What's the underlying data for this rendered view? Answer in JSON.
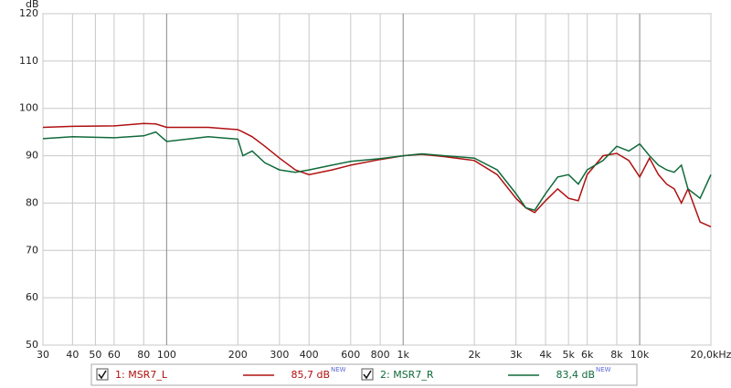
{
  "chart_data": {
    "type": "line",
    "y_label": "dB",
    "x": [
      30,
      40,
      60,
      80,
      90,
      100,
      150,
      200,
      210,
      230,
      260,
      300,
      350,
      400,
      500,
      600,
      800,
      1000,
      1200,
      1500,
      2000,
      2500,
      3000,
      3300,
      3600,
      4000,
      4500,
      5000,
      5500,
      6000,
      7000,
      8000,
      9000,
      10000,
      11000,
      12000,
      13000,
      14000,
      15000,
      16000,
      18000,
      20000
    ],
    "series": [
      {
        "name": "1: MSR7_L",
        "color": "#b01010",
        "level": {
          "value": 85.7,
          "label": "85,7 dB"
        },
        "badge": "NEW",
        "values": [
          96,
          96.2,
          96.3,
          96.8,
          96.7,
          96,
          96,
          95.5,
          95,
          94,
          92,
          89.5,
          87,
          86,
          87,
          88,
          89.2,
          90,
          90.3,
          89.8,
          89,
          86,
          81,
          79,
          78,
          80.5,
          83,
          81,
          80.5,
          86,
          90,
          90.5,
          89,
          85.5,
          89.5,
          86,
          84,
          83,
          80,
          83,
          76,
          75
        ]
      },
      {
        "name": "2: MSR7_R",
        "color": "#106a3a",
        "level": {
          "value": 83.4,
          "label": "83,4 dB"
        },
        "badge": "NEW",
        "values": [
          93.6,
          94,
          93.8,
          94.2,
          95,
          93,
          94,
          93.5,
          90,
          91,
          88.5,
          87,
          86.5,
          87,
          88,
          88.8,
          89.4,
          90,
          90.4,
          90,
          89.5,
          87,
          82,
          79,
          78.5,
          82,
          85.5,
          86,
          84,
          87,
          89,
          92,
          91,
          92.5,
          90,
          88,
          87,
          86.5,
          88,
          83,
          81,
          86
        ]
      }
    ],
    "xlim": [
      30,
      20000
    ],
    "log_x": true,
    "xticks": [
      30,
      40,
      50,
      60,
      80,
      100,
      200,
      300,
      400,
      600,
      800,
      {
        "value": 1000,
        "label": "1k"
      },
      {
        "value": 2000,
        "label": "2k"
      },
      {
        "value": 3000,
        "label": "3k"
      },
      {
        "value": 4000,
        "label": "4k"
      },
      {
        "value": 5000,
        "label": "5k"
      },
      {
        "value": 6000,
        "label": "6k"
      },
      {
        "value": 8000,
        "label": "8k"
      },
      {
        "value": 10000,
        "label": "10k"
      },
      {
        "value": 20000,
        "label": "20,0kHz"
      }
    ],
    "ylim": [
      50,
      120
    ],
    "yticks": [
      50,
      60,
      70,
      80,
      90,
      100,
      110,
      120
    ],
    "grid": true
  }
}
